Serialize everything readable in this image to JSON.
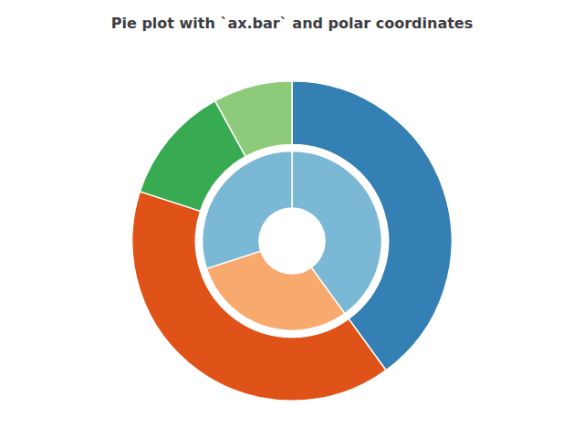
{
  "chart_data": {
    "type": "pie",
    "title": "Pie plot with `ax.bar` and polar coordinates",
    "series": [
      {
        "values": [
          40,
          40,
          12,
          8
        ],
        "colors": [
          "#3480b4",
          "#e05318",
          "#38aa52",
          "#8dca7a"
        ]
      },
      {
        "values": [
          40,
          30,
          30
        ],
        "colors": [
          "#7ab8d5",
          "#f8a96e",
          "#7ab8d5"
        ]
      }
    ]
  }
}
